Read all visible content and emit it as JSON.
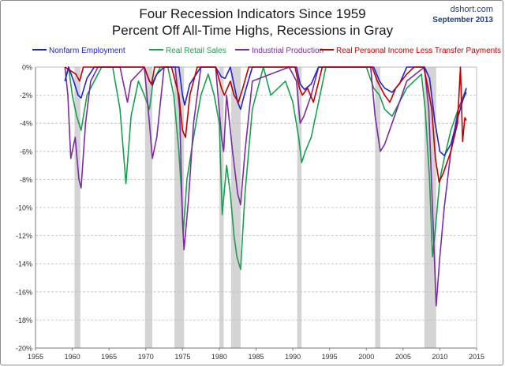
{
  "header": {
    "title_line1": "Four Recession Indicators Since 1959",
    "title_line2": "Percent Off All-Time Highs, Recessions in Gray",
    "site": "dshort.com",
    "date": "September 2013"
  },
  "colors": {
    "nonfarm": "#2222cc",
    "retail": "#18a050",
    "industrial": "#7a2ca0",
    "income": "#c00000",
    "recession": "#d4d4d4",
    "grid": "#bdbdbd",
    "axis": "#333333"
  },
  "chart_data": {
    "type": "line",
    "title": "Four Recession Indicators Since 1959 — Percent Off All-Time Highs, Recessions in Gray",
    "xlabel": "",
    "ylabel": "",
    "xlim": [
      1955,
      2015
    ],
    "ylim": [
      -20,
      0
    ],
    "x_ticks": [
      1955,
      1960,
      1965,
      1970,
      1975,
      1980,
      1985,
      1990,
      1995,
      2000,
      2005,
      2010,
      2015
    ],
    "y_ticks": [
      0,
      -2,
      -4,
      -6,
      -8,
      -10,
      -12,
      -14,
      -16,
      -18,
      -20
    ],
    "y_tick_labels": [
      "0%",
      "-2%",
      "-4%",
      "-6%",
      "-8%",
      "-10%",
      "-12%",
      "-14%",
      "-16%",
      "-18%",
      "-20%"
    ],
    "grid": "horizontal dashed",
    "legend_position": "top",
    "recessions": [
      [
        1960.3,
        1961.1
      ],
      [
        1969.9,
        1970.9
      ],
      [
        1973.9,
        1975.2
      ],
      [
        1980.0,
        1980.6
      ],
      [
        1981.6,
        1982.9
      ],
      [
        1990.6,
        1991.2
      ],
      [
        2001.2,
        2001.9
      ],
      [
        2007.9,
        2009.5
      ]
    ],
    "series": [
      {
        "name": "Nonfarm Employment",
        "x": [
          1959.0,
          1959.5,
          1960.2,
          1960.8,
          1961.2,
          1962.0,
          1963.0,
          1965.0,
          1969.8,
          1970.5,
          1970.9,
          1971.5,
          1972.5,
          1974.5,
          1975.0,
          1975.3,
          1976.0,
          1977.5,
          1979.5,
          1980.3,
          1980.8,
          1981.5,
          1982.5,
          1982.9,
          1983.5,
          1984.5,
          1990.5,
          1991.0,
          1991.6,
          1992.5,
          1993.5,
          2001.0,
          2001.8,
          2002.5,
          2003.5,
          2004.5,
          2005.5,
          2007.9,
          2008.6,
          2009.3,
          2010.0,
          2010.6,
          2011.5,
          2012.5,
          2013.6
        ],
        "y": [
          -1.0,
          0,
          -1.0,
          -2.0,
          -2.2,
          -0.8,
          0,
          0,
          0,
          -1.0,
          -1.3,
          -0.5,
          0,
          0,
          -2.0,
          -2.7,
          -1.2,
          0,
          0,
          -0.7,
          -0.8,
          0,
          -2.5,
          -3.0,
          -1.8,
          0,
          0,
          -1.2,
          -1.6,
          -1.2,
          0,
          0,
          -1.0,
          -1.5,
          -1.8,
          -1.2,
          0,
          0,
          -0.8,
          -3.8,
          -6.0,
          -6.3,
          -5.5,
          -3.5,
          -1.5
        ]
      },
      {
        "name": "Real Retail Sales",
        "x": [
          1959.0,
          1959.5,
          1960.0,
          1960.6,
          1961.2,
          1962.0,
          1963.0,
          1964.0,
          1965.5,
          1966.5,
          1967.3,
          1968.0,
          1969.0,
          1969.8,
          1970.5,
          1971.0,
          1972.0,
          1973.0,
          1973.8,
          1974.5,
          1974.8,
          1975.1,
          1975.6,
          1976.5,
          1977.5,
          1978.5,
          1979.3,
          1980.0,
          1980.4,
          1981.0,
          1981.5,
          1982.0,
          1982.4,
          1982.9,
          1983.5,
          1984.5,
          1986.0,
          1987.0,
          1989.0,
          1990.0,
          1990.8,
          1991.2,
          1991.7,
          1992.5,
          1993.5,
          1994.5,
          1996.0,
          1998.0,
          2000.0,
          2001.0,
          2001.8,
          2002.5,
          2003.5,
          2004.5,
          2005.5,
          2006.5,
          2007.5,
          2008.0,
          2008.6,
          2009.0,
          2009.4,
          2010.0,
          2010.6,
          2011.5,
          2012.5,
          2013.6
        ],
        "y": [
          -1.0,
          0,
          -2.0,
          -3.5,
          -4.5,
          -2.0,
          -1.0,
          0,
          0,
          -3.0,
          -8.3,
          -3.5,
          -1.0,
          -2.0,
          -3.0,
          -1.0,
          0,
          0,
          -2.0,
          -6.0,
          -8.5,
          -11.8,
          -8.0,
          -5.0,
          -2.0,
          -0.5,
          -2.0,
          -4.0,
          -10.5,
          -7.0,
          -9.0,
          -12.0,
          -13.5,
          -14.4,
          -9.0,
          -3.0,
          0,
          -2.0,
          -1.0,
          -2.5,
          -5.0,
          -6.8,
          -6.0,
          -5.0,
          -2.5,
          0,
          0,
          0,
          0,
          -1.5,
          -2.0,
          -3.0,
          -3.5,
          -2.5,
          -1.5,
          -1.0,
          -0.5,
          -3.0,
          -8.0,
          -13.5,
          -11.5,
          -8.0,
          -6.5,
          -4.5,
          -3.0,
          -1.5
        ]
      },
      {
        "name": "Industrial Production",
        "x": [
          1959.0,
          1959.4,
          1959.8,
          1960.4,
          1960.9,
          1961.2,
          1961.8,
          1962.5,
          1963.5,
          1966.5,
          1967.5,
          1968.0,
          1969.8,
          1970.5,
          1970.9,
          1971.5,
          1972.5,
          1974.0,
          1974.6,
          1975.0,
          1975.2,
          1975.8,
          1976.5,
          1977.5,
          1979.5,
          1980.3,
          1980.6,
          1981.0,
          1981.8,
          1982.5,
          1982.9,
          1983.5,
          1984.5,
          1989.5,
          1990.5,
          1991.0,
          1991.5,
          1992.5,
          1993.5,
          2000.6,
          2001.2,
          2001.9,
          2002.5,
          2003.5,
          2004.5,
          2005.5,
          2007.9,
          2008.5,
          2009.0,
          2009.5,
          2010.0,
          2010.6,
          2011.5,
          2012.5,
          2013.6
        ],
        "y": [
          0,
          -2.0,
          -6.5,
          -5.0,
          -8.0,
          -8.6,
          -4.0,
          -1.0,
          0,
          0,
          -2.5,
          -1.0,
          0,
          -4.0,
          -6.5,
          -5.0,
          0,
          0,
          -3.0,
          -11.0,
          -13.0,
          -9.5,
          -4.0,
          0,
          0,
          -5.0,
          -6.0,
          -2.0,
          -6.0,
          -9.0,
          -9.8,
          -6.0,
          -1.0,
          0,
          -1.0,
          -4.0,
          -3.5,
          -2.0,
          0,
          0,
          -3.5,
          -6.0,
          -5.5,
          -4.0,
          -2.5,
          -1.0,
          0,
          -3.0,
          -10.0,
          -17.0,
          -13.5,
          -10.0,
          -6.0,
          -3.0,
          -1.8
        ]
      },
      {
        "name": "Real Personal Income Less Transfer Payments",
        "x": [
          1959.0,
          1960.5,
          1961.0,
          1961.5,
          1969.8,
          1970.5,
          1970.8,
          1971.2,
          1973.5,
          1974.5,
          1975.0,
          1975.4,
          1976.0,
          1977.0,
          1979.5,
          1980.3,
          1980.7,
          1981.5,
          1982.0,
          1982.6,
          1983.2,
          1984.0,
          1990.3,
          1990.9,
          1991.3,
          1992.0,
          1992.8,
          1993.3,
          1994.0,
          2000.8,
          2001.5,
          2002.5,
          2003.2,
          2004.0,
          2005.5,
          2006.5,
          2007.8,
          2008.4,
          2008.9,
          2009.4,
          2009.9,
          2010.5,
          2011.5,
          2012.4,
          2012.8,
          2013.1,
          2013.4,
          2013.6
        ],
        "y": [
          0,
          -0.5,
          -1.0,
          0,
          0,
          -1.0,
          -1.2,
          0,
          0,
          -2.0,
          -4.5,
          -5.0,
          -2.0,
          0,
          0,
          -1.5,
          -2.0,
          -1.0,
          -2.0,
          -2.5,
          -1.5,
          0,
          0,
          -1.5,
          -2.0,
          -1.5,
          -2.5,
          -1.5,
          0,
          0,
          -1.0,
          -2.0,
          -2.5,
          -1.5,
          -0.5,
          0,
          0,
          -1.5,
          -3.0,
          -6.5,
          -8.2,
          -7.5,
          -6.0,
          -4.0,
          0,
          -5.3,
          -3.6,
          -3.8
        ]
      }
    ]
  }
}
